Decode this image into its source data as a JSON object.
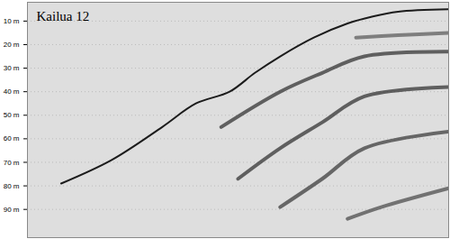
{
  "chart_data": {
    "type": "line",
    "title": "Kailua 12",
    "tick_labels": "y",
    "xlim": [
      0,
      100
    ],
    "ylim": [
      2,
      102
    ],
    "yticks": [
      {
        "value": 10,
        "label": "10 m"
      },
      {
        "value": 20,
        "label": "20 m"
      },
      {
        "value": 30,
        "label": "30 m"
      },
      {
        "value": 40,
        "label": "40 m"
      },
      {
        "value": 50,
        "label": "50 m"
      },
      {
        "value": 60,
        "label": "60 m"
      },
      {
        "value": 70,
        "label": "70 m"
      },
      {
        "value": 80,
        "label": "80 m"
      },
      {
        "value": 90,
        "label": "90 m"
      }
    ],
    "series": [
      {
        "color": "#111111",
        "x": [
          8,
          20,
          32,
          40,
          48,
          54,
          60,
          68,
          76,
          82,
          88,
          100
        ],
        "values": [
          79,
          69,
          55,
          45,
          40,
          32,
          25,
          17,
          11,
          8,
          6,
          5
        ]
      },
      {
        "color": "#555555",
        "x": [
          78,
          88,
          100
        ],
        "values": [
          17,
          16,
          15
        ]
      },
      {
        "color": "#2a2a2a",
        "x": [
          46,
          60,
          70,
          80,
          100
        ],
        "values": [
          55,
          40,
          32,
          25,
          23
        ]
      },
      {
        "color": "#2a2a2a",
        "x": [
          50,
          60,
          70,
          80,
          100
        ],
        "values": [
          77,
          64,
          53,
          42,
          38
        ]
      },
      {
        "color": "#333333",
        "x": [
          60,
          70,
          80,
          100
        ],
        "values": [
          89,
          77,
          64,
          57
        ]
      },
      {
        "color": "#444444",
        "x": [
          76,
          84,
          100
        ],
        "values": [
          94,
          89,
          81
        ]
      }
    ]
  }
}
